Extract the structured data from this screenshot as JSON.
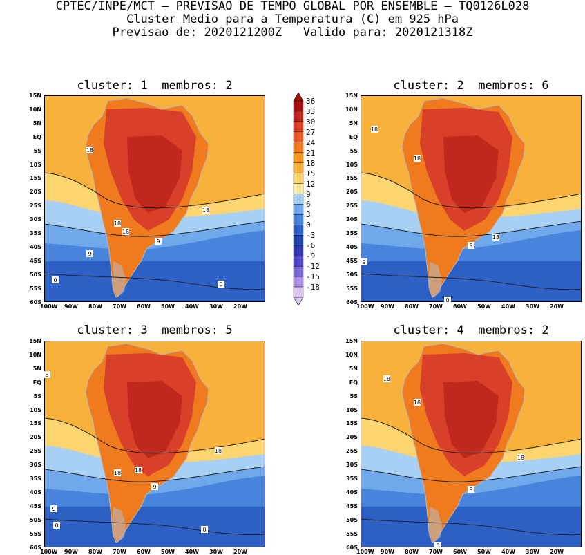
{
  "header": {
    "line1": "CPTEC/INPE/MCT – PREVISAO DE TEMPO GLOBAL POR ENSEMBLE – TQ0126L028",
    "line2": "Cluster Medio para a Temperatura (C) em 925 hPa",
    "line3": "Previsao de: 2020121200Z   Valido para: 2020121318Z"
  },
  "panels": [
    {
      "title": "cluster: 1  membros: 2"
    },
    {
      "title": "cluster: 2  membros: 6"
    },
    {
      "title": "cluster: 3  membros: 5"
    },
    {
      "title": "cluster: 4  membros: 2"
    }
  ],
  "lat_labels": [
    "15N",
    "10N",
    "5N",
    "EQ",
    "5S",
    "10S",
    "15S",
    "20S",
    "25S",
    "30S",
    "35S",
    "40S",
    "45S",
    "50S",
    "55S",
    "60S"
  ],
  "lon_labels": [
    "100W",
    "90W",
    "80W",
    "70W",
    "60W",
    "50W",
    "40W",
    "30W",
    "20W"
  ],
  "colorbar": {
    "labels": [
      "36",
      "33",
      "30",
      "27",
      "24",
      "21",
      "18",
      "15",
      "12",
      "9",
      "6",
      "3",
      "0",
      "-3",
      "-6",
      "-9",
      "-12",
      "-15",
      "-18"
    ],
    "colors": [
      "#a01010",
      "#c0281e",
      "#d8402a",
      "#e85a28",
      "#f07a1e",
      "#f4961c",
      "#f8b23c",
      "#fcd470",
      "#f8e8a0",
      "#a8d0f4",
      "#70a8ec",
      "#4884dc",
      "#2c60c4",
      "#1e44a8",
      "#3038b0",
      "#5048c8",
      "#7868d8",
      "#a890e4",
      "#d8c8f0"
    ]
  },
  "contour_labels": {
    "p1": [
      "18",
      "18",
      "18",
      "18",
      "9",
      "9",
      "0",
      "0"
    ],
    "p2": [
      "18",
      "18",
      "18",
      "9",
      "9",
      "0"
    ],
    "p3": [
      "8",
      "18",
      "18",
      "18",
      "9",
      "9",
      "0",
      "0"
    ],
    "p4": [
      "18",
      "18",
      "18",
      "9",
      "0"
    ]
  }
}
